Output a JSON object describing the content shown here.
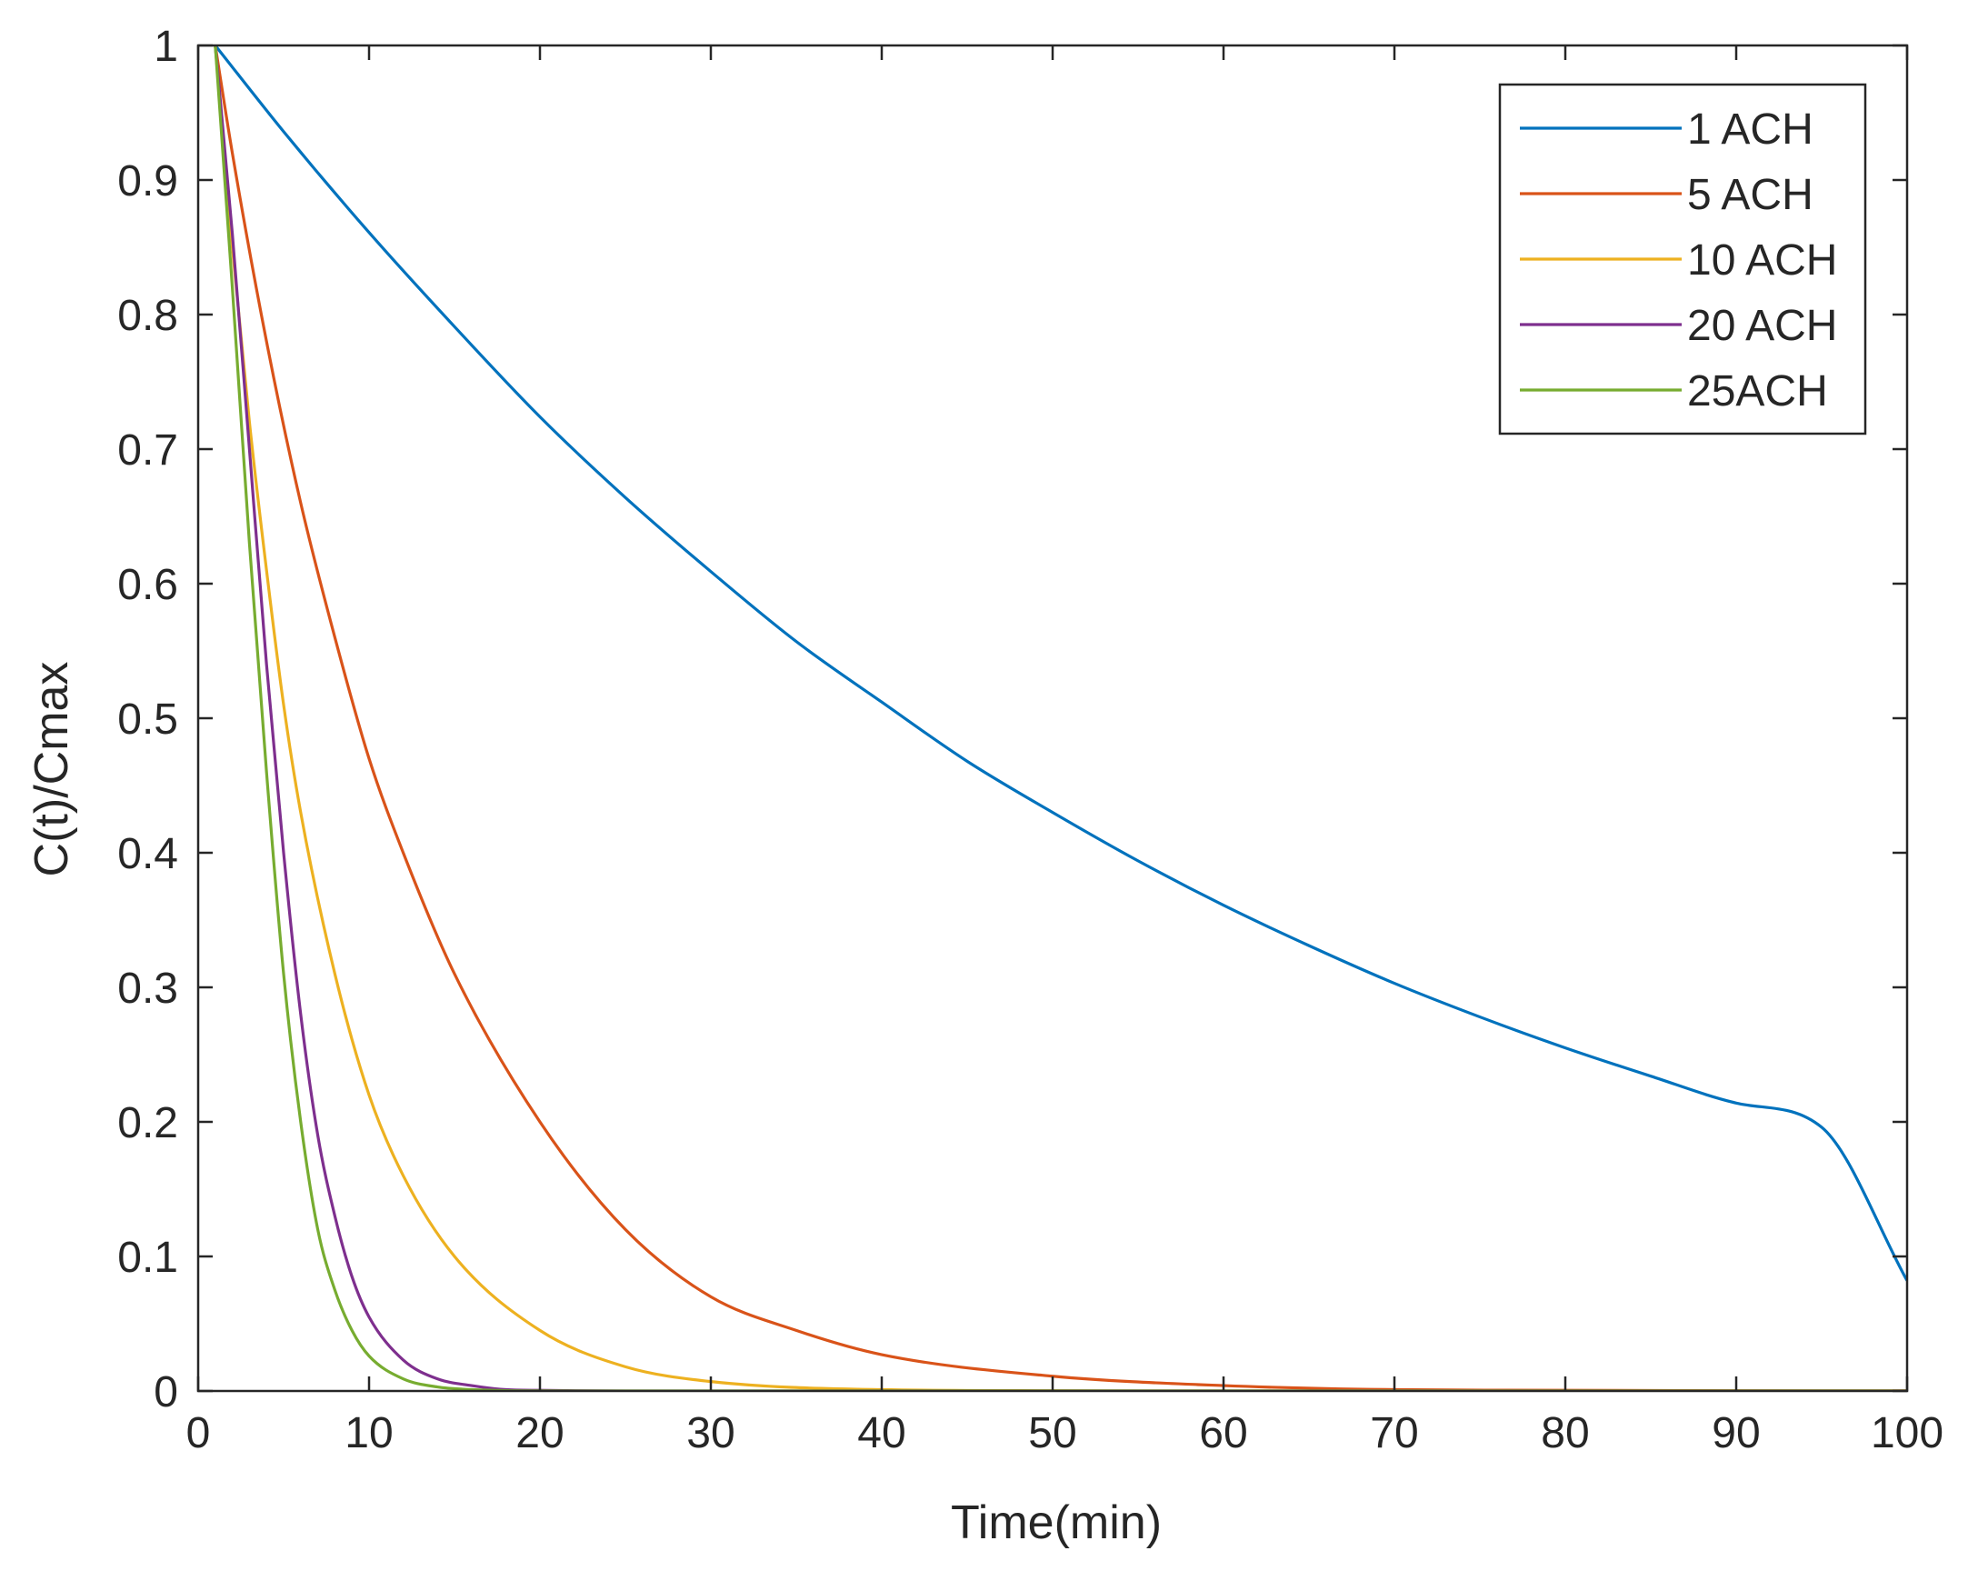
{
  "chart_data": {
    "type": "line",
    "title": "",
    "xlabel": "Time(min)",
    "ylabel": "C(t)/Cmax",
    "xlim": [
      0,
      100
    ],
    "ylim": [
      0,
      1
    ],
    "xticks": [
      0,
      10,
      20,
      30,
      40,
      50,
      60,
      70,
      80,
      90,
      100
    ],
    "xtick_labels": [
      "0",
      "10",
      "20",
      "30",
      "40",
      "50",
      "60",
      "70",
      "80",
      "90",
      "100"
    ],
    "yticks": [
      0,
      0.1,
      0.2,
      0.3,
      0.4,
      0.5,
      0.6,
      0.7,
      0.8,
      0.9,
      1
    ],
    "ytick_labels": [
      "0",
      "0.1",
      "0.2",
      "0.3",
      "0.4",
      "0.5",
      "0.6",
      "0.7",
      "0.8",
      "0.9",
      "1"
    ],
    "grid": false,
    "legend_position": "top-right",
    "series": [
      {
        "name": "1 ACH",
        "color": "#0072BD",
        "x": [
          1,
          5,
          10,
          15,
          20,
          25,
          30,
          35,
          40,
          45,
          50,
          55,
          60,
          65,
          70,
          75,
          80,
          85,
          90,
          95,
          100
        ],
        "y": [
          1.0,
          0.936,
          0.861,
          0.791,
          0.724,
          0.664,
          0.609,
          0.557,
          0.512,
          0.468,
          0.43,
          0.394,
          0.361,
          0.331,
          0.303,
          0.278,
          0.255,
          0.234,
          0.214,
          0.196,
          0.082
        ]
      },
      {
        "name": "5 ACH",
        "color": "#D95319",
        "x": [
          1,
          2,
          4,
          6,
          8,
          10,
          12,
          15,
          20,
          25,
          30,
          35,
          40,
          50,
          60,
          70,
          80,
          90,
          100
        ],
        "y": [
          1.0,
          0.92,
          0.78,
          0.66,
          0.56,
          0.47,
          0.4,
          0.31,
          0.2,
          0.12,
          0.07,
          0.045,
          0.027,
          0.011,
          0.004,
          0.001,
          0.0005,
          0.0002,
          0.0001
        ]
      },
      {
        "name": "10 ACH",
        "color": "#EDB120",
        "x": [
          1,
          2,
          3,
          4,
          5,
          6,
          8,
          10,
          12,
          15,
          20,
          25,
          30,
          40,
          50,
          60,
          80,
          100
        ],
        "y": [
          1.0,
          0.85,
          0.72,
          0.61,
          0.51,
          0.43,
          0.31,
          0.22,
          0.16,
          0.1,
          0.045,
          0.018,
          0.007,
          0.001,
          0.0002,
          0.0,
          0.0,
          0.0
        ]
      },
      {
        "name": "20 ACH",
        "color": "#7E2F8E",
        "x": [
          1,
          2,
          3,
          4,
          5,
          6,
          7,
          8,
          9,
          10,
          12,
          14,
          16,
          18,
          20,
          25,
          30,
          40,
          60,
          100
        ],
        "y": [
          1.0,
          0.86,
          0.7,
          0.54,
          0.4,
          0.28,
          0.19,
          0.13,
          0.085,
          0.055,
          0.023,
          0.009,
          0.004,
          0.001,
          0.0005,
          0.0,
          0.0,
          0.0,
          0.0,
          0.0
        ]
      },
      {
        "name": "25ACH",
        "color": "#77AC30",
        "x": [
          1,
          2,
          3,
          4,
          5,
          6,
          7,
          8,
          9,
          10,
          12,
          14,
          16,
          18,
          20,
          25,
          30,
          40,
          60,
          100
        ],
        "y": [
          1.0,
          0.82,
          0.63,
          0.46,
          0.31,
          0.2,
          0.12,
          0.075,
          0.045,
          0.026,
          0.009,
          0.003,
          0.001,
          0.0003,
          0.0001,
          0.0,
          0.0,
          0.0,
          0.0,
          0.0
        ]
      }
    ]
  }
}
